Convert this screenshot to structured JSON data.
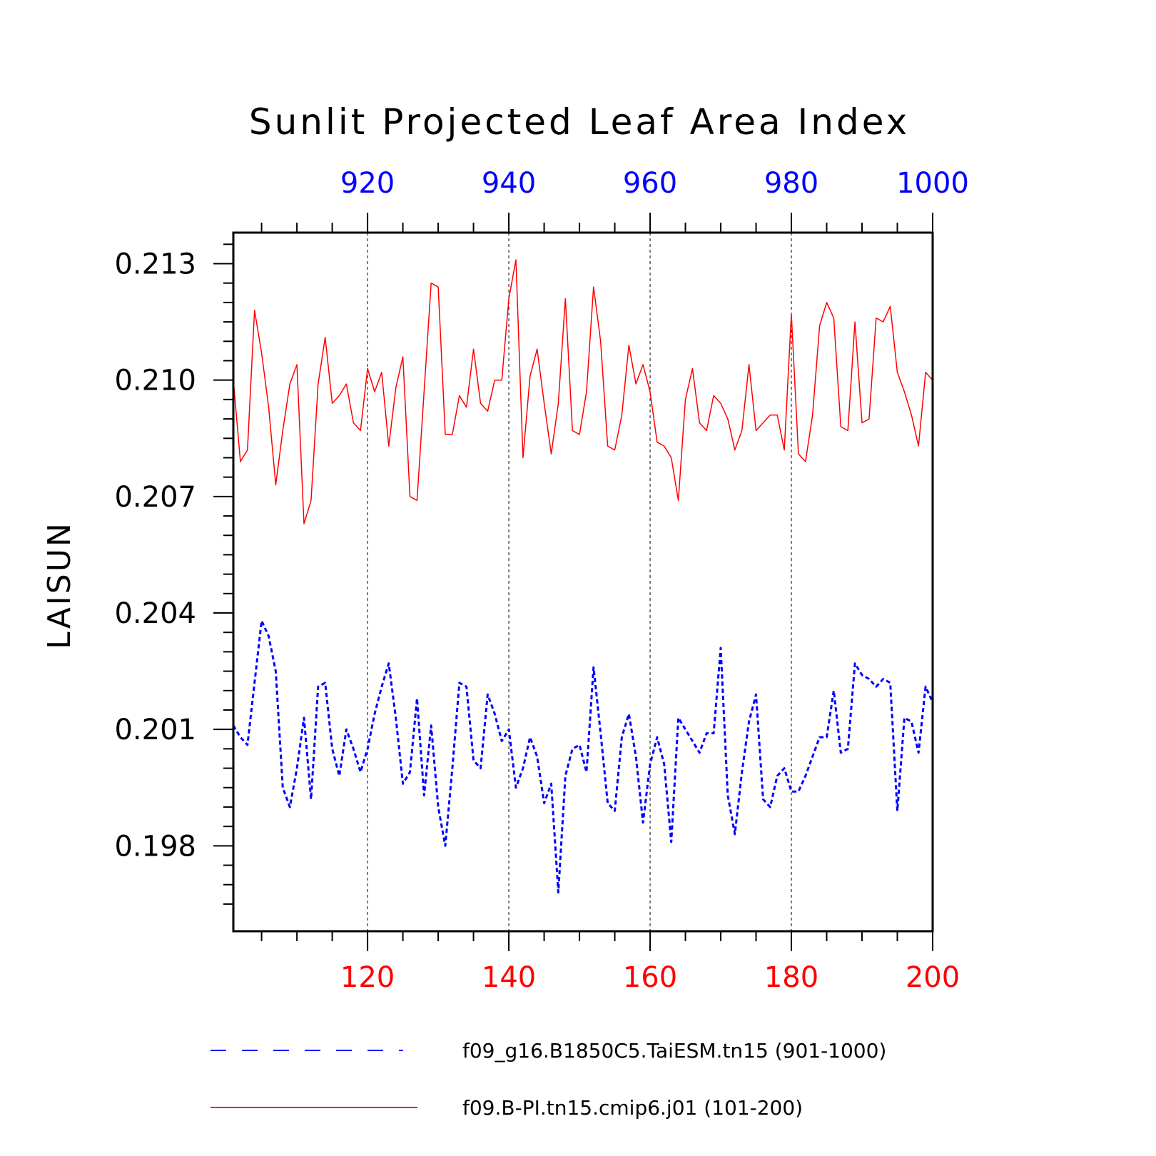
{
  "chart_data": {
    "type": "line",
    "title": "Sunlit Projected Leaf Area Index",
    "ylabel": "LAISUN",
    "ylim": [
      0.1958,
      0.2138
    ],
    "yticks": [
      0.198,
      0.201,
      0.204,
      0.207,
      0.21,
      0.213
    ],
    "ytick_labels": [
      "0.198",
      "0.201",
      "0.204",
      "0.207",
      "0.210",
      "0.213"
    ],
    "x_bottom": {
      "range": [
        101,
        200
      ],
      "ticks": [
        120,
        140,
        160,
        180,
        200
      ],
      "tick_labels": [
        "120",
        "140",
        "160",
        "180",
        "200"
      ],
      "color": "#ff0000"
    },
    "x_top": {
      "range": [
        901,
        1000
      ],
      "ticks": [
        920,
        940,
        960,
        980,
        1000
      ],
      "tick_labels": [
        "920",
        "940",
        "960",
        "980",
        "1000"
      ],
      "color": "#0000ff"
    },
    "grid": "dashed vertical lines at major x ticks",
    "legend_position": "bottom",
    "series": [
      {
        "name": "f09_g16.B1850C5.TaiESM.tn15 (901-1000)",
        "axis": "top",
        "color": "#0000ff",
        "style": "dashed",
        "x_start": 901,
        "values": [
          0.2011,
          0.2008,
          0.2006,
          0.2022,
          0.2038,
          0.2034,
          0.2025,
          0.1995,
          0.199,
          0.2,
          0.2013,
          0.1992,
          0.2021,
          0.2022,
          0.2005,
          0.1998,
          0.201,
          0.2005,
          0.1999,
          0.2005,
          0.2014,
          0.2021,
          0.2027,
          0.2013,
          0.1996,
          0.1999,
          0.2018,
          0.1993,
          0.2011,
          0.199,
          0.198,
          0.2,
          0.2022,
          0.2021,
          0.2002,
          0.2,
          0.2019,
          0.2014,
          0.2007,
          0.201,
          0.1995,
          0.2,
          0.2008,
          0.2003,
          0.1991,
          0.1996,
          0.1968,
          0.1998,
          0.2005,
          0.2006,
          0.1999,
          0.2026,
          0.2009,
          0.1991,
          0.1989,
          0.2008,
          0.2014,
          0.2003,
          0.1986,
          0.2001,
          0.2008,
          0.2001,
          0.1981,
          0.2013,
          0.201,
          0.2007,
          0.2004,
          0.2009,
          0.2009,
          0.2031,
          0.1993,
          0.1983,
          0.1999,
          0.2012,
          0.2019,
          0.1992,
          0.199,
          0.1998,
          0.2,
          0.1994,
          0.1994,
          0.1998,
          0.2003,
          0.2008,
          0.2008,
          0.202,
          0.2004,
          0.2005,
          0.2027,
          0.2024,
          0.2023,
          0.2021,
          0.2023,
          0.2022,
          0.1989,
          0.2013,
          0.2012,
          0.2004,
          0.2021,
          0.2017
        ]
      },
      {
        "name": "f09.B-PI.tn15.cmip6.j01 (101-200)",
        "axis": "bottom",
        "color": "#ff0000",
        "style": "solid",
        "x_start": 101,
        "values": [
          0.21,
          0.2079,
          0.2082,
          0.2118,
          0.2107,
          0.2093,
          0.2073,
          0.2087,
          0.2099,
          0.2104,
          0.2063,
          0.2069,
          0.2099,
          0.2111,
          0.2094,
          0.2096,
          0.2099,
          0.2089,
          0.2087,
          0.2103,
          0.2097,
          0.2102,
          0.2083,
          0.2098,
          0.2106,
          0.207,
          0.2069,
          0.2097,
          0.2125,
          0.2124,
          0.2086,
          0.2086,
          0.2096,
          0.2093,
          0.2108,
          0.2094,
          0.2092,
          0.21,
          0.21,
          0.2121,
          0.2131,
          0.208,
          0.2101,
          0.2108,
          0.2094,
          0.2081,
          0.2094,
          0.2121,
          0.2087,
          0.2086,
          0.2097,
          0.2124,
          0.211,
          0.2083,
          0.2082,
          0.2091,
          0.2109,
          0.2099,
          0.2104,
          0.2097,
          0.2084,
          0.2083,
          0.208,
          0.2069,
          0.2095,
          0.2103,
          0.2089,
          0.2087,
          0.2096,
          0.2094,
          0.209,
          0.2082,
          0.2087,
          0.2104,
          0.2087,
          0.2089,
          0.2091,
          0.2091,
          0.2082,
          0.2117,
          0.2081,
          0.2079,
          0.2091,
          0.2114,
          0.212,
          0.2116,
          0.2088,
          0.2087,
          0.2115,
          0.2089,
          0.209,
          0.2116,
          0.2115,
          0.2119,
          0.2102,
          0.2097,
          0.2091,
          0.2083,
          0.2102,
          0.21
        ]
      }
    ]
  }
}
